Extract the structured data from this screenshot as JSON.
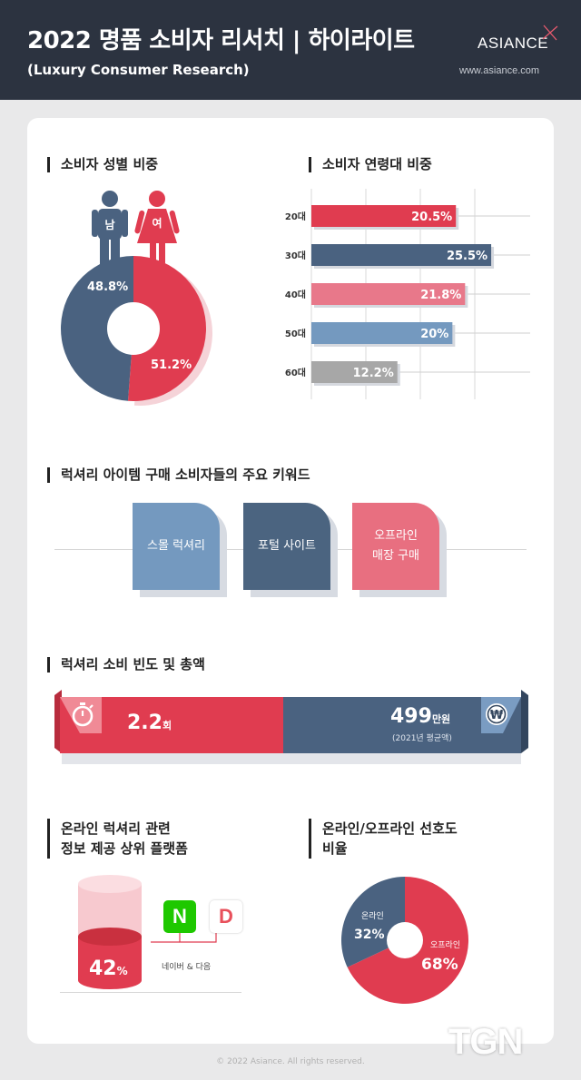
{
  "header": {
    "title": "2022 명품 소비자 리서치 | 하이라이트",
    "subtitle": "(Luxury Consumer Research)",
    "brand": "ASIANCE",
    "url": "www.asiance.com"
  },
  "sections": {
    "gender": "소비자 성별 비중",
    "age": "소비자 연령대 비중",
    "keywords": "럭셔리 아이템 구매 소비자들의 주요 키워드",
    "frequency": "럭셔리 소비 빈도 및 총액",
    "platform": "온라인 럭셔리 관련\n정보 제공 상위 플랫폼",
    "preference": "온라인/오프라인 선호도\n비율"
  },
  "gender_icons": {
    "male": "남",
    "female": "여"
  },
  "keywords": [
    {
      "label": "스몰 럭셔리",
      "color": "#7499bf"
    },
    {
      "label": "포털 사이트",
      "color": "#4b6480"
    },
    {
      "label": "오프라인\n매장 구매",
      "color": "#e86f80"
    }
  ],
  "frequency": {
    "count_value": "2.2",
    "count_unit": "회",
    "amount_value": "499",
    "amount_unit": "만원",
    "amount_note": "(2021년 평균액)",
    "count_color": "#e03c50",
    "amount_color": "#4a6280"
  },
  "platform": {
    "share_value": "42",
    "share_unit": "%",
    "logo_naver": "N",
    "logo_daum": "D",
    "caption": "네이버 & 다음",
    "naver_color": "#1ec800",
    "color": "#e03c50"
  },
  "chart_data": [
    {
      "type": "pie",
      "labels": [
        "남",
        "여"
      ],
      "values": [
        48.8,
        51.2
      ],
      "value_labels": [
        "48.8%",
        "51.2%"
      ],
      "colors": [
        "#4a6280",
        "#e03c50"
      ]
    },
    {
      "type": "bar",
      "orientation": "horizontal",
      "categories": [
        "20대",
        "30대",
        "40대",
        "50대",
        "60대"
      ],
      "values": [
        20.5,
        25.5,
        21.8,
        20,
        12.2
      ],
      "value_labels": [
        "20.5%",
        "25.5%",
        "21.8%",
        "20%",
        "12.2%"
      ],
      "colors": [
        "#e03c50",
        "#4a6280",
        "#e8788a",
        "#7499bf",
        "#a7a7a7"
      ],
      "xlim": [
        0,
        30
      ],
      "grid": true
    },
    {
      "type": "pie",
      "labels": [
        "온라인",
        "오프라인"
      ],
      "values": [
        32,
        68
      ],
      "value_labels": [
        "32%",
        "68%"
      ],
      "colors": [
        "#4a6280",
        "#e03c50"
      ]
    }
  ]
}
